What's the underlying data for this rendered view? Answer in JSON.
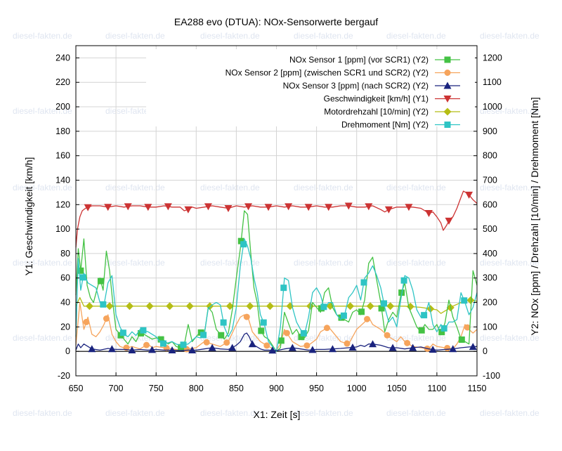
{
  "watermark": "diesel-fakten.de",
  "chart_data": {
    "type": "line",
    "title": "EA288 evo (DTUA): NOx-Sensorwerte bergauf",
    "xlabel": "X1: Zeit [s]",
    "ylabel": "Y1: Geschwindigkeit [km/h]",
    "y2label": "Y2: NOx [ppm] / Drehzahl [10/min] / Drehmoment [Nm]",
    "xlim": [
      650,
      1150
    ],
    "ylim": [
      -20,
      250
    ],
    "y2lim": [
      -100,
      1250
    ],
    "x_ticks": [
      650,
      700,
      750,
      800,
      850,
      900,
      950,
      1000,
      1050,
      1100,
      1150
    ],
    "y_ticks": [
      -20,
      0,
      20,
      40,
      60,
      80,
      100,
      120,
      140,
      160,
      180,
      200,
      220,
      240
    ],
    "y2_ticks": [
      -100,
      0,
      100,
      200,
      300,
      400,
      500,
      600,
      700,
      800,
      900,
      1000,
      1100,
      1200
    ],
    "grid": true,
    "legend_position": "top-right",
    "series": [
      {
        "name": "NOx Sensor 1 [ppm] (vor SCR1) (Y2)",
        "axis": "y2",
        "color": "#44c244",
        "marker": "square",
        "x": [
          650,
          653,
          656,
          660,
          664,
          668,
          672,
          676,
          680,
          684,
          688,
          692,
          696,
          700,
          705,
          710,
          715,
          720,
          725,
          730,
          735,
          740,
          745,
          750,
          755,
          760,
          765,
          770,
          775,
          780,
          785,
          790,
          795,
          800,
          805,
          810,
          815,
          820,
          825,
          830,
          835,
          840,
          845,
          850,
          855,
          860,
          864,
          868,
          872,
          876,
          880,
          885,
          890,
          895,
          900,
          905,
          910,
          915,
          920,
          925,
          930,
          935,
          940,
          945,
          950,
          955,
          960,
          965,
          970,
          975,
          980,
          985,
          990,
          995,
          1000,
          1005,
          1010,
          1015,
          1020,
          1025,
          1030,
          1035,
          1040,
          1045,
          1050,
          1055,
          1060,
          1065,
          1070,
          1075,
          1080,
          1085,
          1090,
          1095,
          1100,
          1105,
          1110,
          1115,
          1120,
          1125,
          1130,
          1135,
          1140,
          1145,
          1150
        ],
        "y": [
          230,
          420,
          330,
          460,
          270,
          220,
          200,
          250,
          300,
          250,
          410,
          330,
          200,
          90,
          70,
          50,
          30,
          60,
          40,
          75,
          70,
          60,
          50,
          55,
          50,
          45,
          30,
          40,
          20,
          15,
          25,
          110,
          40,
          60,
          80,
          65,
          180,
          160,
          90,
          70,
          50,
          75,
          170,
          300,
          420,
          575,
          560,
          400,
          260,
          200,
          90,
          60,
          50,
          25,
          0,
          15,
          160,
          115,
          70,
          90,
          60,
          55,
          85,
          200,
          180,
          160,
          240,
          260,
          180,
          150,
          140,
          130,
          120,
          160,
          170,
          150,
          210,
          360,
          385,
          290,
          200,
          80,
          130,
          160,
          140,
          230,
          280,
          180,
          140,
          100,
          80,
          110,
          90,
          90,
          110,
          70,
          115,
          210,
          140,
          100,
          50,
          40,
          30,
          330,
          270
        ]
      },
      {
        "name": "NOx Sensor 2 [ppm] (zwischen SCR1 und SCR2) (Y2)",
        "axis": "y2",
        "color": "#f6a45c",
        "marker": "circle",
        "x": [
          650,
          655,
          660,
          665,
          670,
          675,
          680,
          685,
          690,
          695,
          700,
          705,
          710,
          715,
          720,
          725,
          730,
          735,
          740,
          745,
          750,
          760,
          770,
          780,
          790,
          800,
          810,
          820,
          830,
          840,
          850,
          855,
          860,
          865,
          870,
          875,
          880,
          890,
          900,
          905,
          910,
          920,
          930,
          940,
          950,
          955,
          960,
          965,
          970,
          980,
          990,
          1000,
          1010,
          1015,
          1020,
          1030,
          1040,
          1050,
          1055,
          1060,
          1070,
          1080,
          1090,
          1095,
          1100,
          1110,
          1120,
          1125,
          1130,
          1135,
          1140,
          1145,
          1150
        ],
        "y": [
          25,
          200,
          90,
          140,
          70,
          60,
          80,
          110,
          150,
          70,
          40,
          20,
          15,
          15,
          20,
          15,
          10,
          20,
          30,
          15,
          20,
          15,
          10,
          5,
          10,
          15,
          40,
          30,
          20,
          40,
          110,
          140,
          150,
          135,
          80,
          60,
          40,
          20,
          5,
          30,
          90,
          40,
          20,
          25,
          50,
          80,
          90,
          100,
          80,
          40,
          30,
          90,
          120,
          140,
          110,
          90,
          60,
          40,
          60,
          40,
          20,
          15,
          10,
          30,
          20,
          15,
          10,
          30,
          60,
          110,
          90,
          75,
          90
        ]
      },
      {
        "name": "NOx Sensor 3 [ppm] (nach SCR2) (Y2)",
        "axis": "y2",
        "color": "#1a237e",
        "marker": "triangle-up",
        "x": [
          650,
          653,
          656,
          660,
          665,
          670,
          680,
          690,
          700,
          710,
          720,
          730,
          740,
          750,
          760,
          770,
          780,
          790,
          800,
          810,
          820,
          830,
          840,
          845,
          850,
          855,
          860,
          863,
          866,
          870,
          875,
          880,
          885,
          890,
          900,
          910,
          920,
          930,
          940,
          950,
          960,
          970,
          980,
          990,
          1000,
          1005,
          1010,
          1015,
          1020,
          1030,
          1040,
          1050,
          1060,
          1070,
          1080,
          1090,
          1100,
          1110,
          1120,
          1130,
          1140,
          1150
        ],
        "y": [
          5,
          30,
          15,
          30,
          20,
          10,
          5,
          12,
          8,
          8,
          5,
          8,
          5,
          8,
          5,
          5,
          3,
          5,
          5,
          10,
          15,
          10,
          8,
          15,
          25,
          40,
          70,
          75,
          60,
          30,
          20,
          10,
          5,
          5,
          3,
          10,
          15,
          10,
          5,
          8,
          8,
          10,
          12,
          15,
          18,
          25,
          20,
          30,
          30,
          25,
          15,
          15,
          10,
          15,
          18,
          10,
          5,
          8,
          10,
          15,
          18,
          20
        ]
      },
      {
        "name": "Geschwindigkeit [km/h] (Y1)",
        "axis": "y1",
        "color": "#cc3333",
        "marker": "triangle-down",
        "x": [
          650,
          652,
          655,
          658,
          662,
          666,
          670,
          680,
          690,
          700,
          710,
          720,
          730,
          740,
          750,
          760,
          770,
          780,
          785,
          790,
          795,
          800,
          810,
          820,
          830,
          840,
          850,
          860,
          870,
          880,
          890,
          900,
          910,
          920,
          930,
          940,
          950,
          960,
          970,
          980,
          990,
          1000,
          1010,
          1020,
          1030,
          1035,
          1040,
          1050,
          1060,
          1070,
          1080,
          1085,
          1090,
          1095,
          1100,
          1105,
          1108,
          1112,
          1116,
          1120,
          1125,
          1130,
          1133,
          1136,
          1140,
          1145,
          1150
        ],
        "y": [
          85,
          100,
          110,
          115,
          117,
          118,
          119,
          119,
          118,
          119,
          118,
          119,
          119,
          118,
          118,
          119,
          118,
          118,
          115,
          116,
          118,
          117,
          118,
          119,
          118,
          117,
          119,
          118,
          119,
          118,
          118,
          119,
          118,
          119,
          118,
          118,
          119,
          118,
          118,
          119,
          119,
          118,
          118,
          119,
          116,
          114,
          116,
          118,
          118,
          118,
          117,
          115,
          113,
          114,
          110,
          105,
          99,
          103,
          108,
          110,
          117,
          126,
          131,
          130,
          128,
          124,
          121
        ]
      },
      {
        "name": "Motordrehzahl [10/min] (Y2)",
        "axis": "y2",
        "color": "#b5bd14",
        "marker": "diamond",
        "x": [
          650,
          655,
          660,
          670,
          680,
          690,
          700,
          720,
          740,
          760,
          780,
          800,
          820,
          840,
          860,
          880,
          900,
          920,
          940,
          960,
          980,
          1000,
          1020,
          1040,
          1060,
          1080,
          1090,
          1100,
          1105,
          1110,
          1115,
          1120,
          1130,
          1140,
          1150
        ],
        "y": [
          185,
          220,
          185,
          185,
          185,
          185,
          185,
          185,
          185,
          185,
          185,
          185,
          185,
          185,
          185,
          185,
          185,
          185,
          185,
          185,
          185,
          185,
          185,
          185,
          185,
          180,
          175,
          170,
          155,
          165,
          175,
          185,
          200,
          210,
          205
        ]
      },
      {
        "name": "Drehmoment [Nm] (Y2)",
        "axis": "y2",
        "color": "#2ec4c4",
        "marker": "square",
        "x": [
          650,
          653,
          656,
          660,
          665,
          670,
          675,
          680,
          685,
          690,
          695,
          700,
          705,
          710,
          715,
          720,
          725,
          730,
          735,
          740,
          745,
          750,
          755,
          760,
          765,
          770,
          775,
          780,
          790,
          800,
          805,
          810,
          815,
          820,
          825,
          830,
          835,
          840,
          845,
          850,
          855,
          860,
          864,
          868,
          872,
          876,
          880,
          885,
          890,
          895,
          900,
          905,
          910,
          915,
          920,
          925,
          930,
          935,
          940,
          945,
          950,
          955,
          960,
          965,
          970,
          975,
          980,
          985,
          990,
          995,
          1000,
          1005,
          1010,
          1015,
          1020,
          1025,
          1030,
          1035,
          1040,
          1045,
          1050,
          1055,
          1060,
          1065,
          1070,
          1075,
          1080,
          1085,
          1090,
          1095,
          1100,
          1105,
          1110,
          1115,
          1120,
          1125,
          1130,
          1135,
          1140,
          1145,
          1150
        ],
        "y": [
          60,
          380,
          250,
          320,
          280,
          270,
          260,
          200,
          190,
          280,
          310,
          150,
          100,
          70,
          60,
          80,
          65,
          90,
          85,
          80,
          70,
          60,
          40,
          30,
          35,
          40,
          30,
          25,
          30,
          60,
          55,
          70,
          175,
          190,
          200,
          190,
          100,
          60,
          90,
          180,
          350,
          460,
          430,
          380,
          300,
          240,
          150,
          110,
          40,
          20,
          0,
          100,
          300,
          290,
          180,
          120,
          90,
          70,
          140,
          240,
          260,
          230,
          170,
          200,
          200,
          150,
          130,
          150,
          220,
          240,
          270,
          210,
          300,
          320,
          350,
          310,
          260,
          180,
          120,
          140,
          100,
          210,
          310,
          300,
          250,
          170,
          140,
          150,
          200,
          110,
          80,
          110,
          90,
          120,
          120,
          130,
          240,
          200,
          150,
          180,
          240
        ]
      }
    ]
  }
}
